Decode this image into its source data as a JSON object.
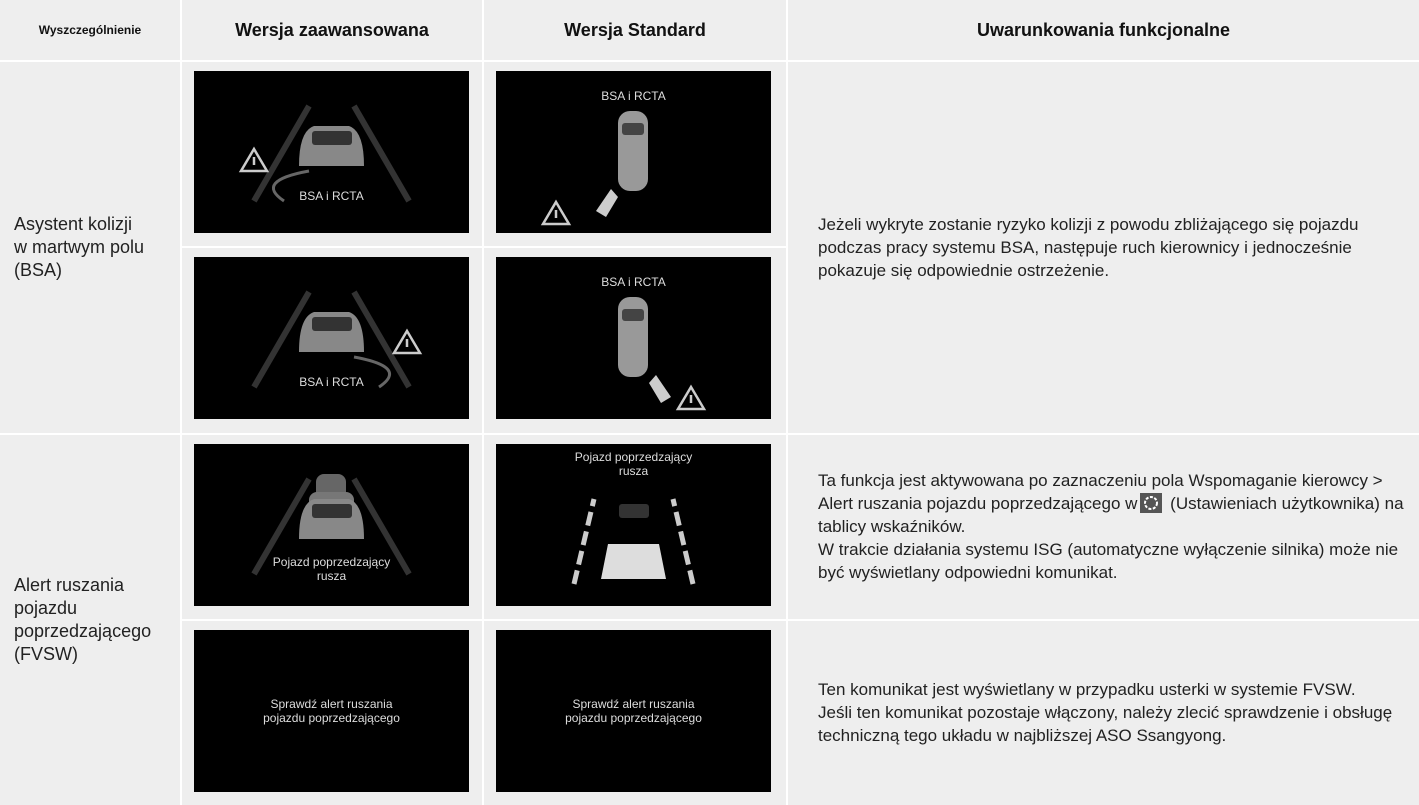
{
  "header": [
    "Wyszczególnienie",
    "Wersja zaawansowana",
    "Wersja Standard",
    "Uwarunkowania funkcjonalne"
  ],
  "rows": [
    {
      "label": [
        "Asystent kolizji",
        "w martwym polu",
        "(BSA)"
      ],
      "groups": [
        {
          "screens": [
            [
              [
                "BSA i RCTA"
              ],
              [
                "BSA i RCTA"
              ]
            ],
            [
              [
                "BSA i RCTA"
              ],
              [
                "BSA i RCTA"
              ]
            ]
          ],
          "bullets": [
            [
              "Jeżeli wykryte zostanie ryzyko kolizji z powodu zbliżającego się pojazdu podczas pracy systemu BSA, następuje ruch kierownicy i jednocześnie pokazuje się odpowiednie ostrzeżenie."
            ]
          ]
        }
      ]
    },
    {
      "label": [
        "Alert ruszania",
        "pojazdu",
        "poprzedzającego",
        "(FVSW)"
      ],
      "groups": [
        {
          "screens": [
            [
              [
                "Pojazd poprzedzający",
                "rusza"
              ],
              [
                "Pojazd poprzedzający",
                "rusza"
              ]
            ]
          ],
          "bullets": [
            [
              "Ta funkcja jest aktywowana po zaznaczeniu pola Wspomaganie kierowcy > Alert ruszania pojazdu poprzedzającego w",
              "(Ustawieniach użytkownika) na tablicy wskaźników."
            ],
            [
              "W trakcie działania systemu ISG (automatyczne wyłączenie silnika) może nie być wyświetlany odpowiedni komunikat."
            ]
          ]
        },
        {
          "screens": [
            [
              [
                "Sprawdź alert ruszania",
                "pojazdu poprzedzającego"
              ],
              [
                "Sprawdź alert ruszania",
                "pojazdu poprzedzającego"
              ]
            ]
          ],
          "bullets": [
            [
              "Ten komunikat jest wyświetlany w przypadku usterki w systemie FVSW."
            ],
            [
              "Jeśli ten komunikat pozostaje włączony, należy zlecić sprawdzenie i obsługę techniczną tego układu w najbliższej ASO Ssangyong."
            ]
          ]
        }
      ]
    }
  ]
}
